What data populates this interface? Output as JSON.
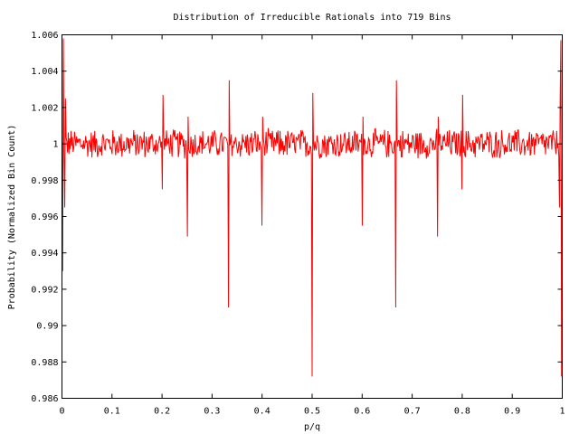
{
  "chart_data": {
    "type": "line",
    "title": "Distribution of Irreducible Rationals into 719 Bins",
    "xlabel": "p/q",
    "ylabel": "Probability (Normalized Bin Count)",
    "xlim": [
      0,
      1
    ],
    "ylim": [
      0.986,
      1.006
    ],
    "xticks": [
      "0",
      "0.1",
      "0.2",
      "0.3",
      "0.4",
      "0.5",
      "0.6",
      "0.7",
      "0.8",
      "0.9",
      "1"
    ],
    "yticks": [
      "0.986",
      "0.988",
      "0.99",
      "0.992",
      "0.994",
      "0.996",
      "0.998",
      "1",
      "1.002",
      "1.004",
      "1.006"
    ],
    "grid": false,
    "line_color": "#ff0000",
    "series": [
      {
        "x_start": 0,
        "x_end": 1,
        "num_bins": 719,
        "baseline": 1.0,
        "noise_amplitude": 0.0009,
        "spikes": [
          {
            "x": 0.0,
            "low": 0.993,
            "high": 1.0058
          },
          {
            "x": 0.005,
            "low": 0.9965,
            "high": 1.0025
          },
          {
            "x": 0.2,
            "low": 0.9975,
            "high": 1.0027
          },
          {
            "x": 0.25,
            "low": 0.9949,
            "high": 1.0015
          },
          {
            "x": 0.333,
            "low": 0.991,
            "high": 1.0035
          },
          {
            "x": 0.4,
            "low": 0.9955,
            "high": 1.0015
          },
          {
            "x": 0.5,
            "low": 0.9872,
            "high": 1.0028
          },
          {
            "x": 0.6,
            "low": 0.9955,
            "high": 1.0015
          },
          {
            "x": 0.667,
            "low": 0.991,
            "high": 1.0035
          },
          {
            "x": 0.75,
            "low": 0.9949,
            "high": 1.0015
          },
          {
            "x": 0.8,
            "low": 0.9975,
            "high": 1.0027
          },
          {
            "x": 0.995,
            "low": 0.9965,
            "high": 1.0025
          },
          {
            "x": 1.0,
            "low": 0.9872,
            "high": 1.0057
          }
        ]
      }
    ]
  }
}
